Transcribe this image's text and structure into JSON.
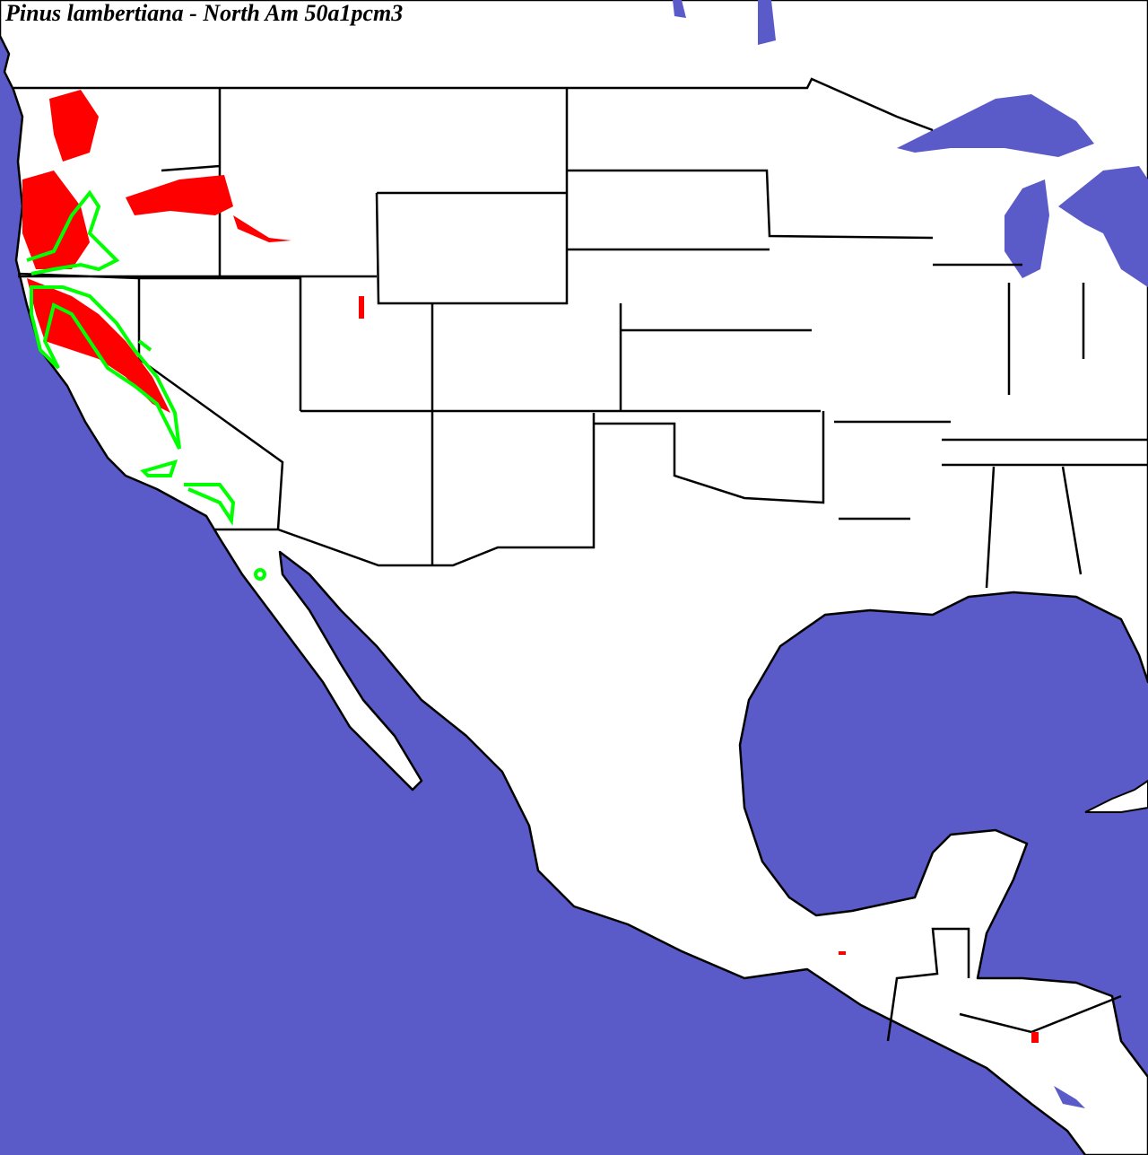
{
  "title": "Pinus lambertiana - North Am 50a1pcm3",
  "colors": {
    "ocean": "#5a5ac8",
    "land": "#ffffff",
    "borders": "#000000",
    "projected_range": "#ff0000",
    "current_range_outline": "#00ff00"
  }
}
